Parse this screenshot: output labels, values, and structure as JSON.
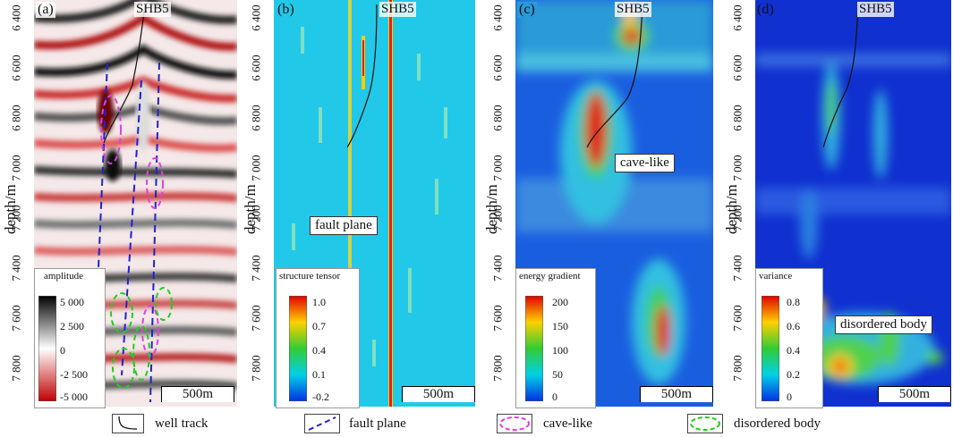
{
  "panels": [
    {
      "id": "a",
      "label": "(a)",
      "well": "SHB5",
      "colorbar": {
        "title": "amplitude",
        "labels": [
          "5 000",
          "2 500",
          "0",
          "-2 500",
          "-5 000"
        ]
      }
    },
    {
      "id": "b",
      "label": "(b)",
      "well": "SHB5",
      "colorbar": {
        "title": "structure tensor",
        "labels": [
          "1.0",
          "0.7",
          "0.4",
          "0.1",
          "-0.2"
        ]
      },
      "callout": "fault plane"
    },
    {
      "id": "c",
      "label": "(c)",
      "well": "SHB5",
      "colorbar": {
        "title": "energy gradient",
        "labels": [
          "200",
          "150",
          "100",
          "50",
          "0"
        ]
      },
      "callout": "cave-like"
    },
    {
      "id": "d",
      "label": "(d)",
      "well": "SHB5",
      "colorbar": {
        "title": "variance",
        "labels": [
          "0.8",
          "0.6",
          "0.4",
          "0.2",
          "0"
        ]
      },
      "callout": "disordered body"
    }
  ],
  "axis": {
    "ylabel": "depth/m",
    "ticks": [
      "6 400",
      "6 600",
      "6 800",
      "7 000",
      "7 200",
      "7 400",
      "7 600",
      "7 800"
    ]
  },
  "scalebar": "500m",
  "legend": [
    {
      "icon": "well-track-icon",
      "label": "well track"
    },
    {
      "icon": "fault-plane-icon",
      "label": "fault plane"
    },
    {
      "icon": "cave-like-icon",
      "label": "cave-like"
    },
    {
      "icon": "disordered-body-icon",
      "label": "disordered body"
    }
  ]
}
